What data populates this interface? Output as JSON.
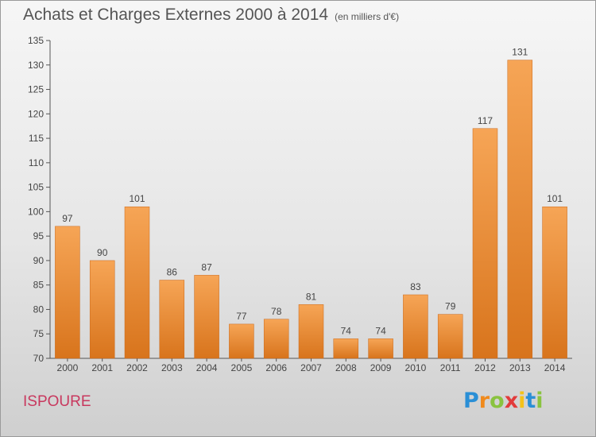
{
  "header": {
    "title": "Achats et Charges Externes 2000 à 2014",
    "unit": "(en milliers d'€)"
  },
  "footer": {
    "commune": "ISPOURE",
    "logo": {
      "letters": [
        "P",
        "r",
        "o",
        "x",
        "i",
        "t",
        "i"
      ],
      "colors": [
        "#2a8fd6",
        "#f08a1c",
        "#8ac33f",
        "#e23b3b",
        "#f4c21a",
        "#2a8fd6",
        "#8ac33f"
      ]
    }
  },
  "chart_data": {
    "type": "bar",
    "categories": [
      "2000",
      "2001",
      "2002",
      "2003",
      "2004",
      "2005",
      "2006",
      "2007",
      "2008",
      "2009",
      "2010",
      "2011",
      "2012",
      "2013",
      "2014"
    ],
    "values": [
      97,
      90,
      101,
      86,
      87,
      77,
      78,
      81,
      74,
      74,
      83,
      79,
      117,
      131,
      101
    ],
    "data_labels": [
      "97",
      "90",
      "101",
      "86",
      "87",
      "77",
      "78",
      "81",
      "74",
      "74",
      "83",
      "79",
      "117",
      "131",
      "101"
    ],
    "title": "Achats et Charges Externes 2000 à 2014",
    "xlabel": "",
    "ylabel": "",
    "ylim": [
      70,
      135
    ],
    "yticks": [
      70,
      75,
      80,
      85,
      90,
      95,
      100,
      105,
      110,
      115,
      120,
      125,
      130,
      135
    ],
    "grid": false,
    "bar_color": "#f0923a"
  }
}
